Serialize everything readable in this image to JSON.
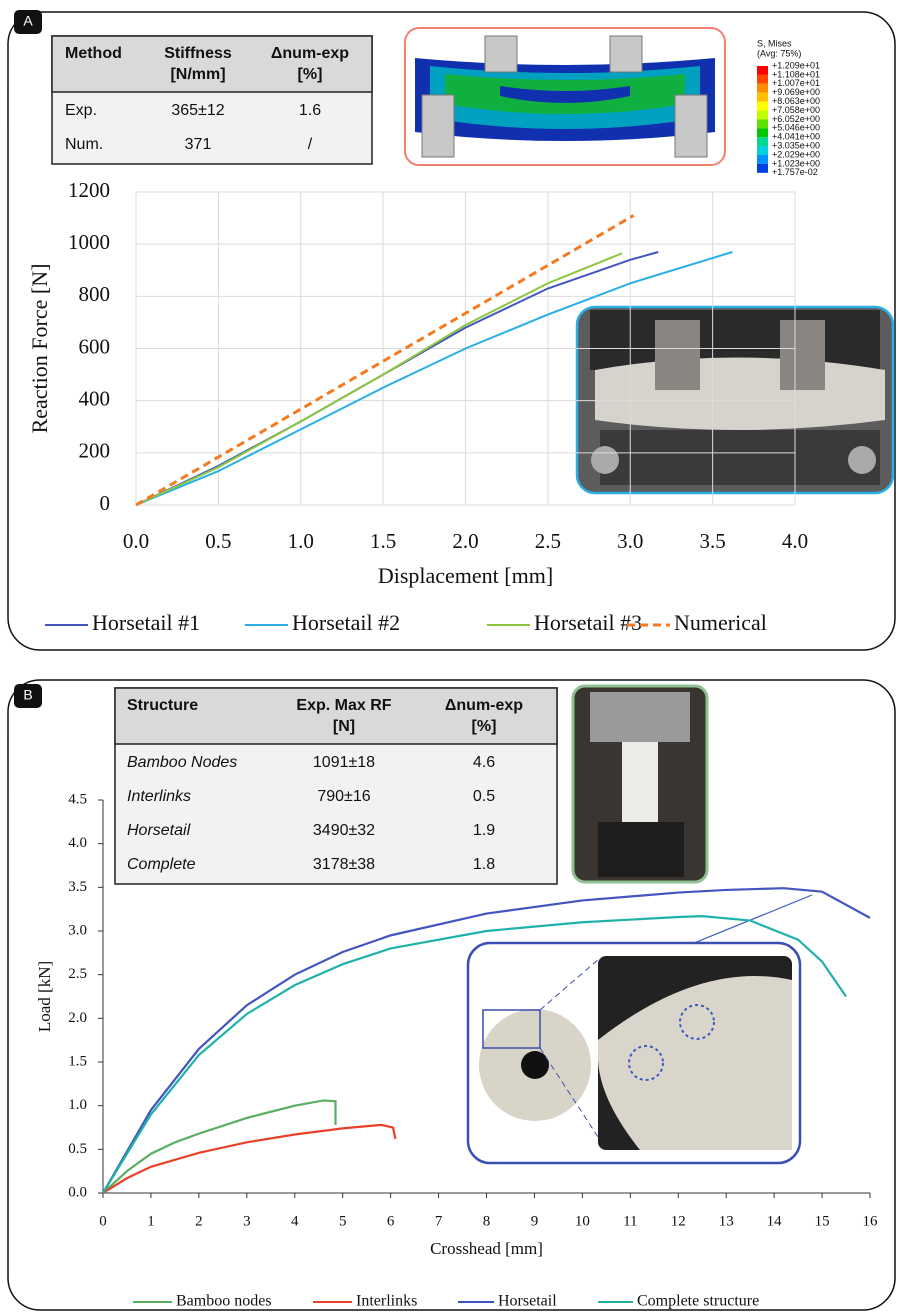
{
  "chart_data": [
    {
      "type": "line",
      "panel_label": "A",
      "x_label": "Displacement [mm]",
      "y_label": "Reaction Force [N]",
      "xlim": [
        0,
        4
      ],
      "xticks": [
        {
          "value": 0,
          "label": "0.0"
        },
        {
          "value": 0.5,
          "label": "0.5"
        },
        {
          "value": 1,
          "label": "1.0"
        },
        {
          "value": 1.5,
          "label": "1.5"
        },
        {
          "value": 2,
          "label": "2.0"
        },
        {
          "value": 2.5,
          "label": "2.5"
        },
        {
          "value": 3,
          "label": "3.0"
        },
        {
          "value": 3.5,
          "label": "3.5"
        },
        {
          "value": 4,
          "label": "4.0"
        }
      ],
      "ylim": [
        0,
        1200
      ],
      "yticks": [
        0,
        200,
        400,
        600,
        800,
        1000,
        1200
      ],
      "grid": true,
      "series": [
        {
          "name": "Horsetail #1",
          "color": "#4355c0",
          "x": [
            0,
            0.5,
            1,
            1.5,
            2,
            2.5,
            3,
            3.17
          ],
          "values": [
            0,
            150,
            320,
            500,
            680,
            830,
            940,
            970
          ]
        },
        {
          "name": "Horsetail #2",
          "color": "#29aee6",
          "x": [
            0,
            0.5,
            1,
            1.5,
            2,
            2.5,
            3,
            3.62
          ],
          "values": [
            0,
            130,
            290,
            450,
            600,
            730,
            850,
            970
          ]
        },
        {
          "name": "Horsetail #3",
          "color": "#8dc63f",
          "x": [
            0,
            0.5,
            1,
            1.5,
            2,
            2.5,
            2.95
          ],
          "values": [
            0,
            145,
            320,
            500,
            690,
            850,
            965
          ]
        },
        {
          "name": "Numerical",
          "color": "#f47a20",
          "dashed": true,
          "x": [
            0,
            3.02
          ],
          "values": [
            0,
            1110
          ]
        }
      ],
      "table": {
        "header": [
          [
            "Method"
          ],
          [
            "Stiffness",
            "[N/mm]"
          ],
          [
            "Δnum-exp",
            "[%]"
          ]
        ],
        "rows": [
          [
            "Exp.",
            "365±12",
            "1.6"
          ],
          [
            "Num.",
            "371",
            "/"
          ]
        ]
      },
      "contour_legend": {
        "title": "S, Mises",
        "subtitle": "(Avg: 75%)",
        "labels": [
          "+1.209e+01",
          "+1.108e+01",
          "+1.007e+01",
          "+9.069e+00",
          "+8.063e+00",
          "+7.058e+00",
          "+6.052e+00",
          "+5.046e+00",
          "+4.041e+00",
          "+3.035e+00",
          "+2.029e+00",
          "+1.023e+00",
          "+1.757e-02"
        ],
        "colors": [
          "#ff0000",
          "#ff4500",
          "#ff8c00",
          "#ffc000",
          "#ffff00",
          "#c0ff00",
          "#60e000",
          "#00c800",
          "#00d890",
          "#00d0e0",
          "#0090ff",
          "#0040e0"
        ]
      }
    },
    {
      "type": "line",
      "panel_label": "B",
      "x_label": "Crosshead [mm]",
      "y_label": "Load [kN]",
      "xlim": [
        0,
        16
      ],
      "xticks": [
        0,
        1,
        2,
        3,
        4,
        5,
        6,
        7,
        8,
        9,
        10,
        11,
        12,
        13,
        14,
        15,
        16
      ],
      "ylim": [
        0,
        4.5
      ],
      "yticks": [
        {
          "value": 0,
          "label": "0.0"
        },
        0.5,
        {
          "value": 1,
          "label": "1.0"
        },
        1.5,
        {
          "value": 2,
          "label": "2.0"
        },
        2.5,
        {
          "value": 3,
          "label": "3.0"
        },
        3.5,
        {
          "value": 4,
          "label": "4.0"
        },
        4.5
      ],
      "grid": false,
      "series": [
        {
          "name": "Bamboo nodes",
          "color": "#5aae61",
          "x": [
            0,
            0.5,
            1,
            1.5,
            2,
            3,
            4,
            4.6,
            4.85,
            4.85
          ],
          "values": [
            0,
            0.25,
            0.45,
            0.58,
            0.68,
            0.86,
            1.0,
            1.06,
            1.05,
            0.78
          ]
        },
        {
          "name": "Interlinks",
          "color": "#e8412a",
          "x": [
            0,
            0.5,
            1,
            2,
            3,
            4,
            5,
            5.8,
            6.05,
            6.1
          ],
          "values": [
            0,
            0.17,
            0.3,
            0.46,
            0.58,
            0.67,
            0.74,
            0.78,
            0.75,
            0.62
          ]
        },
        {
          "name": "Horsetail",
          "color": "#4355c0",
          "x": [
            0,
            1,
            2,
            3,
            4,
            5,
            6,
            8,
            10,
            12,
            13,
            14.2,
            15,
            16
          ],
          "values": [
            0,
            0.95,
            1.65,
            2.15,
            2.5,
            2.76,
            2.95,
            3.2,
            3.35,
            3.44,
            3.47,
            3.49,
            3.45,
            3.15
          ]
        },
        {
          "name": "Complete structure",
          "color": "#20b2aa",
          "x": [
            0,
            1,
            2,
            3,
            4,
            5,
            6,
            8,
            10,
            12,
            12.5,
            13.5,
            14.5,
            15,
            15.5
          ],
          "values": [
            0,
            0.9,
            1.58,
            2.05,
            2.38,
            2.62,
            2.8,
            3.0,
            3.1,
            3.16,
            3.17,
            3.12,
            2.9,
            2.65,
            2.25
          ]
        }
      ],
      "table": {
        "header": [
          [
            "Structure"
          ],
          [
            "Exp. Max RF",
            "[N]"
          ],
          [
            "Δnum-exp",
            "[%]"
          ]
        ],
        "rows": [
          [
            "Bamboo Nodes",
            "1091±18",
            "4.6"
          ],
          [
            "Interlinks",
            "790±16",
            "0.5"
          ],
          [
            "Horsetail",
            "3490±32",
            "1.9"
          ],
          [
            "Complete",
            "3178±38",
            "1.8"
          ]
        ]
      }
    }
  ]
}
